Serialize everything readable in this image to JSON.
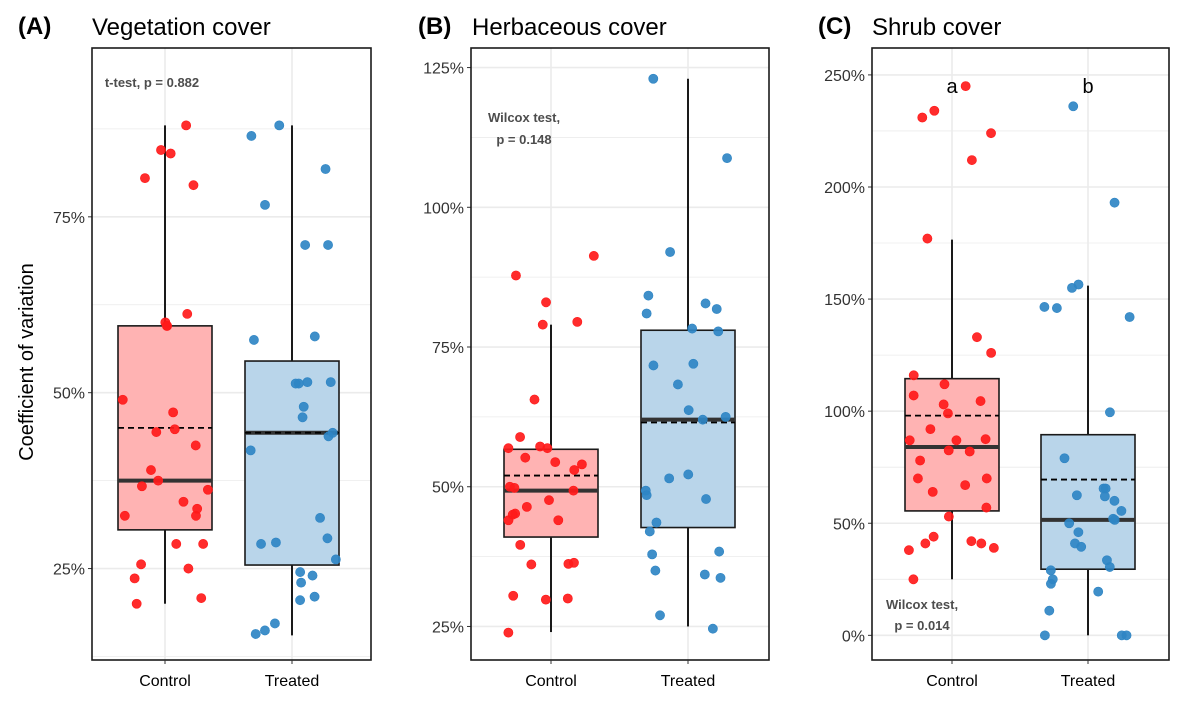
{
  "figure": {
    "y_axis_title": "Coefficient of variation"
  },
  "colors": {
    "control_box": "#ffb3b3",
    "treated_box": "#b9d5ea",
    "control_point": "#ff1a1a",
    "treated_point": "#2f85c4",
    "grid": "#ebebeb",
    "border": "#1a1a1a"
  },
  "chart_data": [
    {
      "type": "box",
      "tag": "(A)",
      "title": "Vegetation cover",
      "xlabel": "",
      "ylabel": "Coefficient of variation",
      "categories": [
        "Control",
        "Treated"
      ],
      "ylim": [
        0.12,
        0.99
      ],
      "yticks": [
        0.25,
        0.5,
        0.75
      ],
      "ytick_labels": [
        "25%",
        "50%",
        "75%"
      ],
      "test_label": [
        "t-test, p = 0.882"
      ],
      "significance_letters": [],
      "boxes": [
        {
          "group": "Control",
          "q1": 0.305,
          "median": 0.375,
          "mean": 0.45,
          "q3": 0.595,
          "whisker_low": 0.2,
          "whisker_high": 0.88
        },
        {
          "group": "Treated",
          "q1": 0.255,
          "median": 0.443,
          "mean": 0.443,
          "q3": 0.545,
          "whisker_low": 0.155,
          "whisker_high": 0.88
        }
      ],
      "points": [
        {
          "group": "Control",
          "values": [
            0.88,
            0.84,
            0.845,
            0.805,
            0.795,
            0.612,
            0.6,
            0.595,
            0.595,
            0.49,
            0.472,
            0.448,
            0.444,
            0.425,
            0.39,
            0.375,
            0.367,
            0.362,
            0.345,
            0.335,
            0.325,
            0.325,
            0.285,
            0.285,
            0.256,
            0.25,
            0.236,
            0.208,
            0.2
          ]
        },
        {
          "group": "Treated",
          "values": [
            0.865,
            0.88,
            0.818,
            0.767,
            0.71,
            0.71,
            0.58,
            0.575,
            0.515,
            0.515,
            0.513,
            0.513,
            0.48,
            0.465,
            0.443,
            0.438,
            0.418,
            0.322,
            0.293,
            0.287,
            0.285,
            0.263,
            0.245,
            0.24,
            0.23,
            0.21,
            0.205,
            0.172,
            0.162,
            0.157
          ]
        }
      ]
    },
    {
      "type": "box",
      "tag": "(B)",
      "title": "Herbaceous cover",
      "xlabel": "",
      "ylabel": "",
      "categories": [
        "Control",
        "Treated"
      ],
      "ylim": [
        0.19,
        1.285
      ],
      "yticks": [
        0.25,
        0.5,
        0.75,
        1.0,
        1.25
      ],
      "ytick_labels": [
        "25%",
        "50%",
        "75%",
        "100%",
        "125%"
      ],
      "test_label": [
        "Wilcox test,",
        "p = 0.148"
      ],
      "significance_letters": [],
      "boxes": [
        {
          "group": "Control",
          "q1": 0.41,
          "median": 0.493,
          "mean": 0.52,
          "q3": 0.567,
          "whisker_low": 0.24,
          "whisker_high": 0.79
        },
        {
          "group": "Treated",
          "q1": 0.427,
          "median": 0.62,
          "mean": 0.615,
          "q3": 0.78,
          "whisker_low": 0.25,
          "whisker_high": 1.23
        }
      ],
      "points": [
        {
          "group": "Control",
          "values": [
            0.913,
            0.878,
            0.83,
            0.795,
            0.79,
            0.656,
            0.589,
            0.572,
            0.569,
            0.569,
            0.552,
            0.544,
            0.54,
            0.53,
            0.5,
            0.498,
            0.493,
            0.476,
            0.464,
            0.452,
            0.45,
            0.44,
            0.44,
            0.396,
            0.364,
            0.362,
            0.361,
            0.305,
            0.3,
            0.298,
            0.239
          ]
        },
        {
          "group": "Treated",
          "values": [
            1.23,
            1.088,
            0.92,
            0.842,
            0.828,
            0.818,
            0.81,
            0.783,
            0.778,
            0.72,
            0.717,
            0.683,
            0.637,
            0.625,
            0.62,
            0.522,
            0.515,
            0.493,
            0.485,
            0.478,
            0.436,
            0.42,
            0.384,
            0.379,
            0.35,
            0.343,
            0.337,
            0.27,
            0.246
          ]
        }
      ]
    },
    {
      "type": "box",
      "tag": "(C)",
      "title": "Shrub cover",
      "xlabel": "",
      "ylabel": "",
      "categories": [
        "Control",
        "Treated"
      ],
      "ylim": [
        -0.11,
        2.62
      ],
      "yticks": [
        0,
        0.5,
        1.0,
        1.5,
        2.0,
        2.5
      ],
      "ytick_labels": [
        "0%",
        "50%",
        "100%",
        "150%",
        "200%",
        "250%"
      ],
      "test_label": [
        "Wilcox test,",
        "p = 0.014"
      ],
      "significance_letters": [
        "a",
        "b"
      ],
      "boxes": [
        {
          "group": "Control",
          "q1": 0.555,
          "median": 0.84,
          "mean": 0.98,
          "q3": 1.145,
          "whisker_low": 0.25,
          "whisker_high": 1.765
        },
        {
          "group": "Treated",
          "q1": 0.295,
          "median": 0.515,
          "mean": 0.695,
          "q3": 0.895,
          "whisker_low": 0.0,
          "whisker_high": 1.56
        }
      ],
      "points": [
        {
          "group": "Control",
          "values": [
            2.45,
            2.34,
            2.31,
            2.24,
            2.12,
            1.77,
            1.33,
            1.26,
            1.16,
            1.12,
            1.07,
            1.045,
            1.03,
            0.99,
            0.92,
            0.875,
            0.87,
            0.87,
            0.825,
            0.82,
            0.78,
            0.7,
            0.7,
            0.67,
            0.64,
            0.57,
            0.53,
            0.44,
            0.42,
            0.41,
            0.41,
            0.39,
            0.38,
            0.25
          ]
        },
        {
          "group": "Treated",
          "values": [
            2.36,
            1.93,
            1.565,
            1.55,
            1.465,
            1.46,
            1.42,
            0.995,
            0.79,
            0.655,
            0.655,
            0.625,
            0.62,
            0.6,
            0.555,
            0.52,
            0.515,
            0.5,
            0.46,
            0.41,
            0.395,
            0.335,
            0.305,
            0.29,
            0.25,
            0.23,
            0.195,
            0.11,
            0.0,
            0.0,
            0.0
          ]
        }
      ]
    }
  ]
}
